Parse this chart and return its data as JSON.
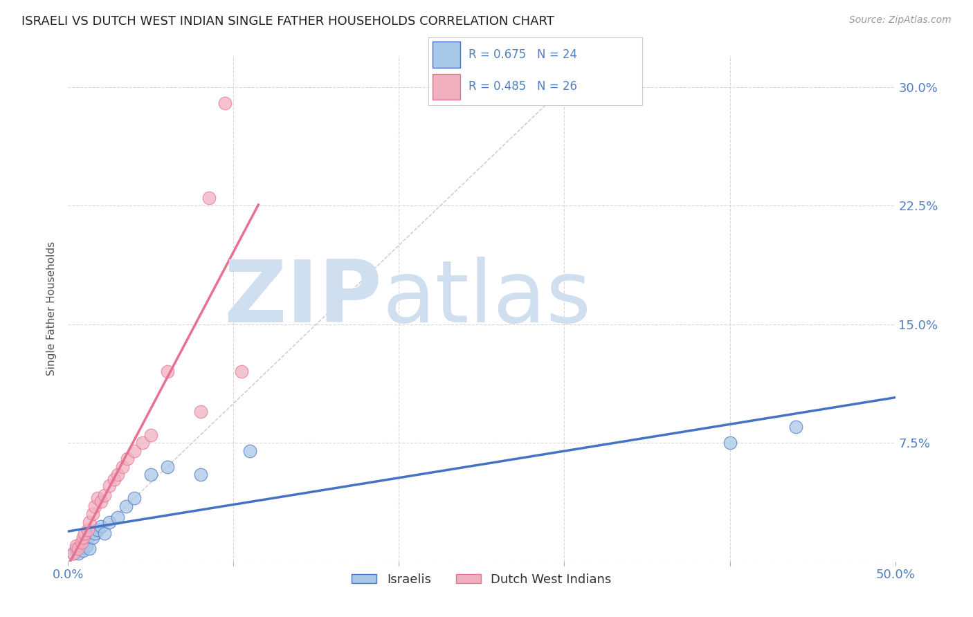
{
  "title": "ISRAELI VS DUTCH WEST INDIAN SINGLE FATHER HOUSEHOLDS CORRELATION CHART",
  "source": "Source: ZipAtlas.com",
  "ylabel": "Single Father Households",
  "xlim": [
    0.0,
    0.5
  ],
  "ylim": [
    0.0,
    0.32
  ],
  "xticks": [
    0.0,
    0.1,
    0.2,
    0.3,
    0.4,
    0.5
  ],
  "yticks": [
    0.0,
    0.075,
    0.15,
    0.225,
    0.3
  ],
  "xticklabels_show": [
    "0.0%",
    "50.0%"
  ],
  "yticklabels_right": [
    "",
    "7.5%",
    "15.0%",
    "22.5%",
    "30.0%"
  ],
  "color_israeli": "#a8c8e8",
  "color_dwi": "#f0b0c0",
  "color_israeli_line": "#4472c4",
  "color_dwi_line": "#e87090",
  "color_diag_line": "#c8c8c8",
  "color_grid": "#d8d8d8",
  "color_title": "#222222",
  "color_source": "#999999",
  "color_right_ticks": "#5080c0",
  "watermark_zip": "ZIP",
  "watermark_atlas": "atlas",
  "watermark_color": "#d0dff0",
  "israeli_x": [
    0.003,
    0.005,
    0.006,
    0.008,
    0.009,
    0.01,
    0.011,
    0.012,
    0.013,
    0.015,
    0.016,
    0.018,
    0.02,
    0.022,
    0.025,
    0.03,
    0.035,
    0.04,
    0.05,
    0.06,
    0.08,
    0.11,
    0.4,
    0.44
  ],
  "israeli_y": [
    0.005,
    0.008,
    0.005,
    0.01,
    0.007,
    0.012,
    0.01,
    0.015,
    0.008,
    0.015,
    0.018,
    0.02,
    0.022,
    0.018,
    0.025,
    0.028,
    0.035,
    0.04,
    0.055,
    0.06,
    0.055,
    0.07,
    0.075,
    0.085
  ],
  "dwi_x": [
    0.003,
    0.005,
    0.006,
    0.008,
    0.009,
    0.01,
    0.012,
    0.013,
    0.015,
    0.016,
    0.018,
    0.02,
    0.022,
    0.025,
    0.028,
    0.03,
    0.033,
    0.036,
    0.04,
    0.045,
    0.05,
    0.06,
    0.08,
    0.085,
    0.095,
    0.105
  ],
  "dwi_y": [
    0.005,
    0.01,
    0.008,
    0.012,
    0.015,
    0.018,
    0.02,
    0.025,
    0.03,
    0.035,
    0.04,
    0.038,
    0.042,
    0.048,
    0.052,
    0.055,
    0.06,
    0.065,
    0.07,
    0.075,
    0.08,
    0.12,
    0.095,
    0.23,
    0.29,
    0.12
  ],
  "isr_line_x": [
    0.0,
    0.5
  ],
  "isr_line_y": [
    0.01,
    0.095
  ],
  "dwi_line_x": [
    0.0,
    0.14
  ],
  "dwi_line_y": [
    0.005,
    0.185
  ]
}
